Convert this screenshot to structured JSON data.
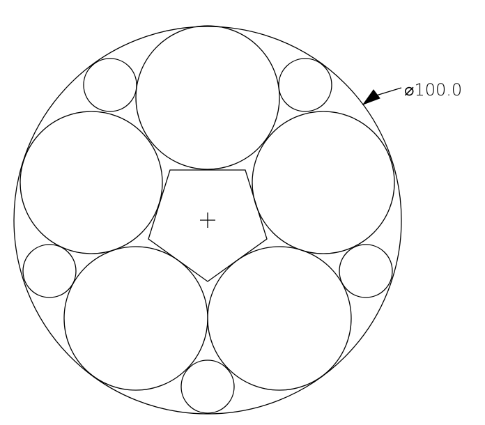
{
  "drawing": {
    "dimension_label": "⌀100.0",
    "line_color": "#000000",
    "background_color": "#ffffff"
  }
}
